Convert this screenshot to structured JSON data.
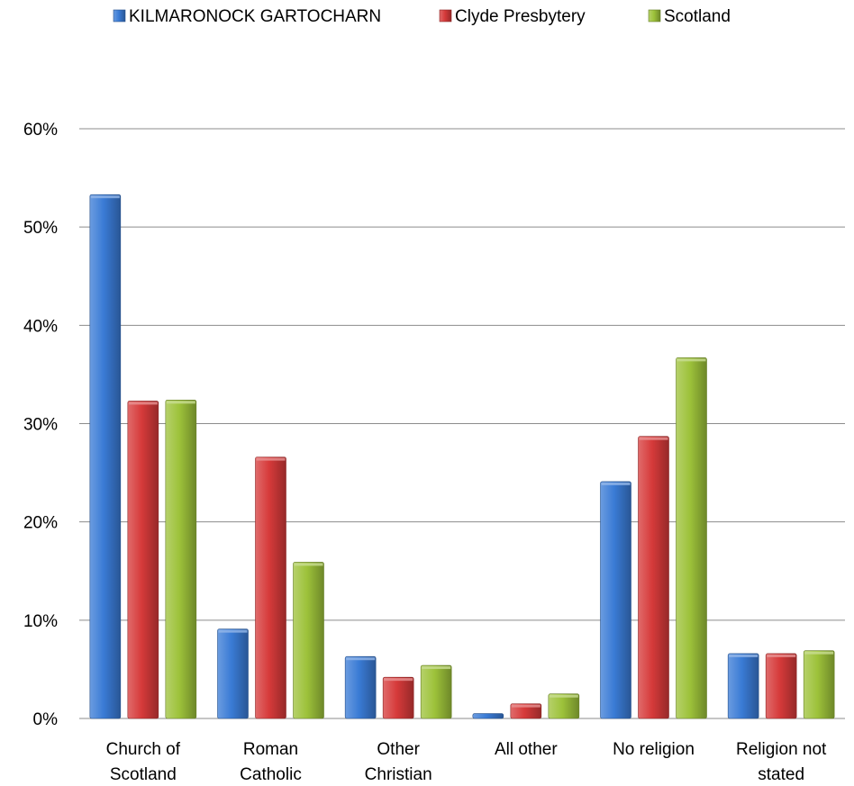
{
  "chart_data": {
    "type": "bar",
    "categories": [
      [
        "Church of",
        "Scotland"
      ],
      [
        "Roman",
        "Catholic"
      ],
      [
        "Other",
        "Christian"
      ],
      [
        "All other"
      ],
      [
        "No religion"
      ],
      [
        "Religion not",
        "stated"
      ]
    ],
    "series": [
      {
        "name": "KILMARONOCK GARTOCHARN",
        "color": "#3a7bd5",
        "values": [
          53.3,
          9.1,
          6.3,
          0.5,
          24.1,
          6.6
        ]
      },
      {
        "name": "Clyde Presbytery",
        "color": "#d63a3a",
        "values": [
          32.3,
          26.6,
          4.2,
          1.5,
          28.7,
          6.6
        ]
      },
      {
        "name": "Scotland",
        "color": "#9dc23a",
        "values": [
          32.4,
          15.9,
          5.4,
          2.5,
          36.7,
          6.9
        ]
      }
    ],
    "ylim": [
      0,
      60
    ],
    "yticks": [
      "0%",
      "10%",
      "20%",
      "30%",
      "40%",
      "50%",
      "60%"
    ],
    "ytick_values": [
      0,
      10,
      20,
      30,
      40,
      50,
      60
    ],
    "legend": "top",
    "grid": true
  }
}
